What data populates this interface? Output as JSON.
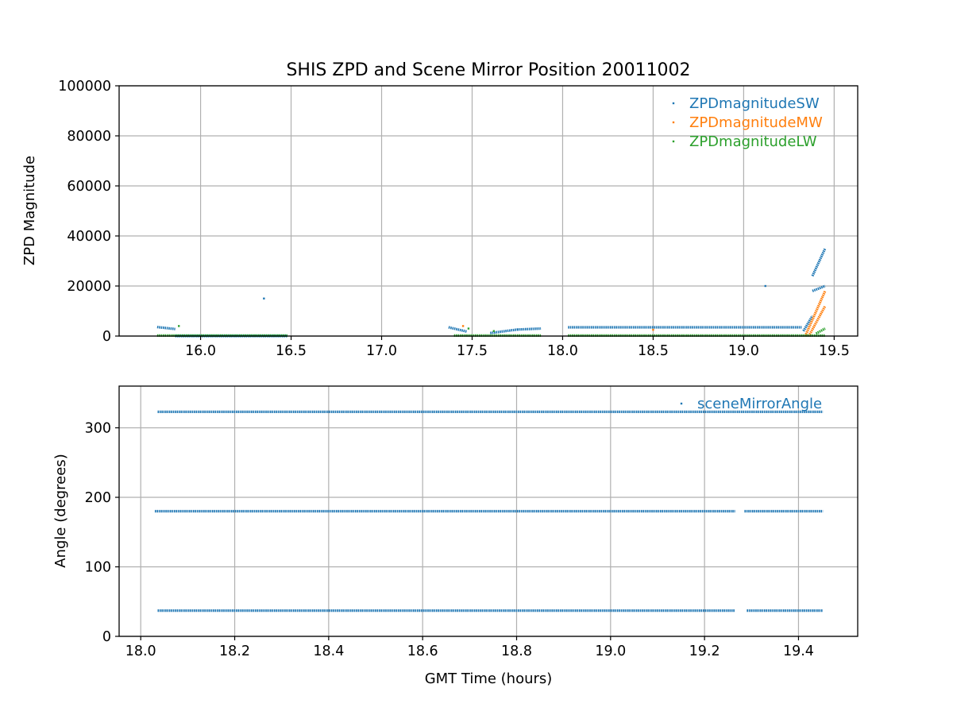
{
  "chart_data": [
    {
      "type": "scatter",
      "title": "SHIS ZPD and Scene Mirror Position 20011002",
      "xlabel": "",
      "ylabel": "ZPD Magnitude",
      "xlim": [
        15.55,
        19.63
      ],
      "ylim": [
        0,
        100000
      ],
      "xticks": [
        "16.0",
        "16.5",
        "17.0",
        "17.5",
        "18.0",
        "18.5",
        "19.0",
        "19.5"
      ],
      "yticks": [
        "0",
        "20000",
        "40000",
        "60000",
        "80000",
        "100000"
      ],
      "grid": true,
      "legend_position": "top-right",
      "series": [
        {
          "name": "ZPDmagnitudeSW",
          "color": "#1f77b4",
          "segments": [
            {
              "x_start": 15.76,
              "x_end": 15.86,
              "y_start": 3600,
              "y_end": 2800
            },
            {
              "x_start": 15.86,
              "x_end": 16.48,
              "y_start": 0,
              "y_end": 0
            },
            {
              "x_start": 17.37,
              "x_end": 17.47,
              "y_start": 3500,
              "y_end": 1800
            },
            {
              "x_start": 17.6,
              "x_end": 17.75,
              "y_start": 1200,
              "y_end": 2600
            },
            {
              "x_start": 17.75,
              "x_end": 17.88,
              "y_start": 2600,
              "y_end": 3000
            },
            {
              "x_start": 18.03,
              "x_end": 19.32,
              "y_start": 3500,
              "y_end": 3500
            },
            {
              "x_start": 19.33,
              "x_end": 19.38,
              "y_start": 2000,
              "y_end": 8000
            },
            {
              "x_start": 19.38,
              "x_end": 19.45,
              "y_start": 18000,
              "y_end": 20000
            },
            {
              "x_start": 19.38,
              "x_end": 19.45,
              "y_start": 24000,
              "y_end": 35000
            }
          ],
          "points": [
            [
              16.35,
              15000
            ],
            [
              19.12,
              20000
            ]
          ]
        },
        {
          "name": "ZPDmagnitudeMW",
          "color": "#ff7f0e",
          "segments": [
            {
              "x_start": 19.34,
              "x_end": 19.45,
              "y_start": 0,
              "y_end": 18000
            },
            {
              "x_start": 19.36,
              "x_end": 19.45,
              "y_start": 0,
              "y_end": 12000
            }
          ],
          "points": [
            [
              17.45,
              4000
            ],
            [
              18.5,
              2500
            ]
          ]
        },
        {
          "name": "ZPDmagnitudeLW",
          "color": "#2ca02c",
          "segments": [
            {
              "x_start": 15.76,
              "x_end": 16.48,
              "y_start": 200,
              "y_end": 200
            },
            {
              "x_start": 17.4,
              "x_end": 17.88,
              "y_start": 200,
              "y_end": 200
            },
            {
              "x_start": 18.03,
              "x_end": 19.45,
              "y_start": 200,
              "y_end": 200
            },
            {
              "x_start": 19.4,
              "x_end": 19.45,
              "y_start": 1000,
              "y_end": 3000
            }
          ],
          "points": [
            [
              15.88,
              4000
            ],
            [
              17.62,
              2000
            ],
            [
              17.48,
              3000
            ]
          ]
        }
      ]
    },
    {
      "type": "scatter",
      "title": "",
      "xlabel": "GMT Time (hours)",
      "ylabel": "Angle (degrees)",
      "xlim": [
        17.954,
        19.526
      ],
      "ylim": [
        0,
        360
      ],
      "xticks": [
        "18.0",
        "18.2",
        "18.4",
        "18.6",
        "18.8",
        "19.0",
        "19.2",
        "19.4"
      ],
      "yticks": [
        "0",
        "100",
        "200",
        "300"
      ],
      "grid": true,
      "legend_position": "top-right",
      "series": [
        {
          "name": "sceneMirrorAngle",
          "color": "#1f77b4",
          "segments": [
            {
              "x_start": 18.036,
              "x_end": 19.452,
              "y_start": 323,
              "y_end": 323
            },
            {
              "x_start": 18.03,
              "x_end": 19.265,
              "y_start": 180,
              "y_end": 180
            },
            {
              "x_start": 19.285,
              "x_end": 19.452,
              "y_start": 180,
              "y_end": 180
            },
            {
              "x_start": 18.036,
              "x_end": 19.265,
              "y_start": 37,
              "y_end": 37
            },
            {
              "x_start": 19.29,
              "x_end": 19.452,
              "y_start": 37,
              "y_end": 37
            }
          ],
          "points": []
        }
      ]
    }
  ]
}
